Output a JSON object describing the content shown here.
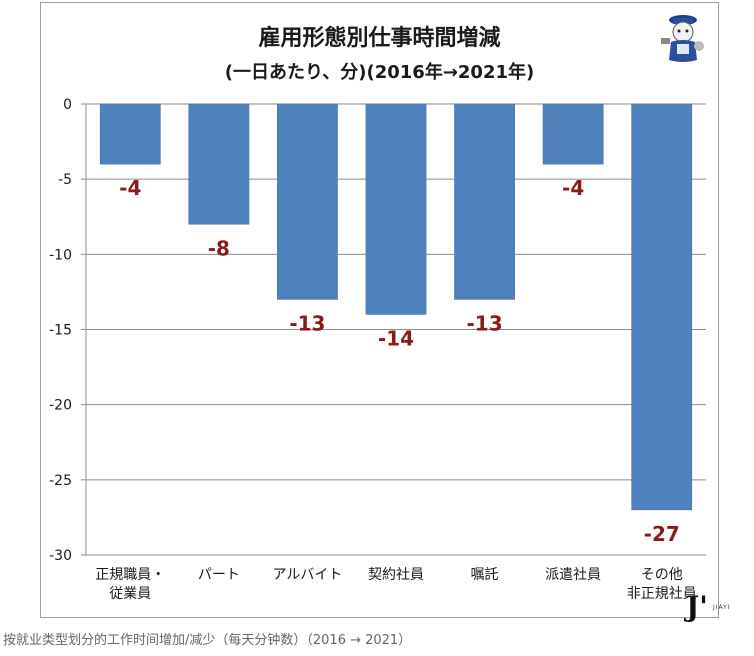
{
  "chart_data": {
    "type": "bar",
    "title": "雇用形態別仕事時間増減",
    "subtitle": "(一日あたり、分)(2016年→2021年)",
    "categories": [
      "正規職員・\n従業員",
      "パート",
      "アルバイト",
      "契約社員",
      "嘱託",
      "派遣社員",
      "その他\n非正規社員"
    ],
    "values": [
      -4,
      -8,
      -13,
      -14,
      -13,
      -4,
      -27
    ],
    "data_labels": [
      "-4",
      "-8",
      "-13",
      "-14",
      "-13",
      "-4",
      "-27"
    ],
    "y_ticks": [
      0,
      -5,
      -10,
      -15,
      -20,
      -25,
      -30
    ],
    "ylim": [
      -30,
      0
    ],
    "grid": true,
    "xlabel": "",
    "ylabel": "",
    "bar_color": "#4f81bd",
    "label_color": "#8b1a1a"
  },
  "caption": "按就业类型划分的工作时间增加/减少（每天分钟数）（2016 → 2021）",
  "watermark": "J'",
  "watermark_sub": "JIAYI"
}
